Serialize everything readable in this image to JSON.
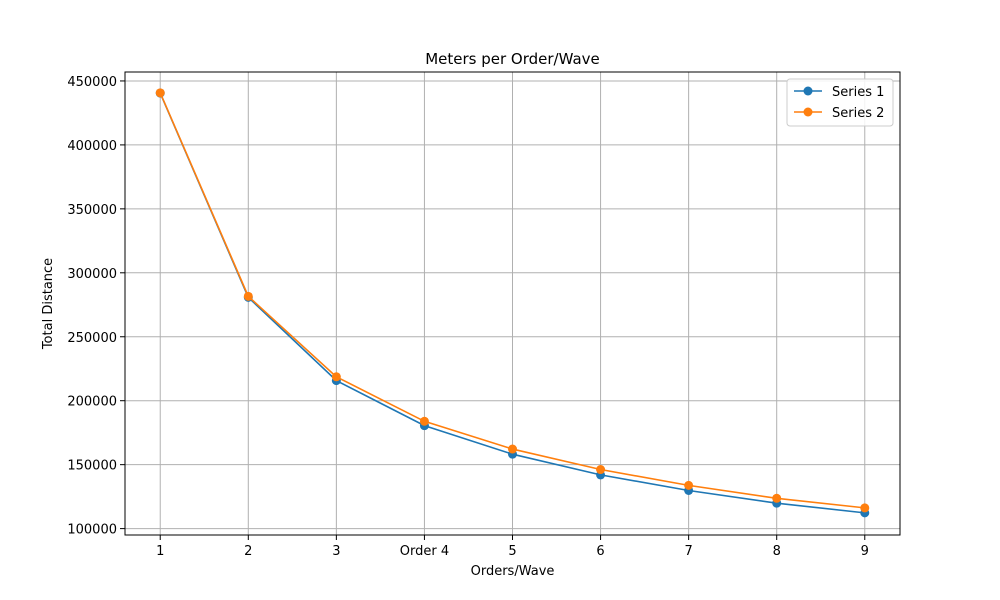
{
  "chart_data": {
    "type": "line",
    "title": "Meters per Order/Wave",
    "xlabel": "Orders/Wave",
    "ylabel": "Total Distance",
    "x": [
      1,
      2,
      3,
      4,
      5,
      6,
      7,
      8,
      9
    ],
    "x_tick_labels": [
      "1",
      "2",
      "3",
      "Order 4",
      "5",
      "6",
      "7",
      "8",
      "9"
    ],
    "y_ticks": [
      100000,
      150000,
      200000,
      250000,
      300000,
      350000,
      400000,
      450000
    ],
    "y_tick_labels": [
      "100000",
      "150000",
      "200000",
      "250000",
      "300000",
      "350000",
      "400000",
      "450000"
    ],
    "xlim": [
      0.6,
      9.4
    ],
    "ylim": [
      95000,
      457000
    ],
    "grid": true,
    "legend_position": "top-right",
    "series": [
      {
        "name": "Series 1",
        "color": "#1f77b4",
        "values": [
          440500,
          280800,
          215700,
          180500,
          158200,
          142000,
          129800,
          119900,
          112300
        ]
      },
      {
        "name": "Series 2",
        "color": "#ff7f0e",
        "values": [
          440700,
          281600,
          218700,
          183900,
          162200,
          146200,
          133800,
          123700,
          116200
        ]
      }
    ]
  }
}
